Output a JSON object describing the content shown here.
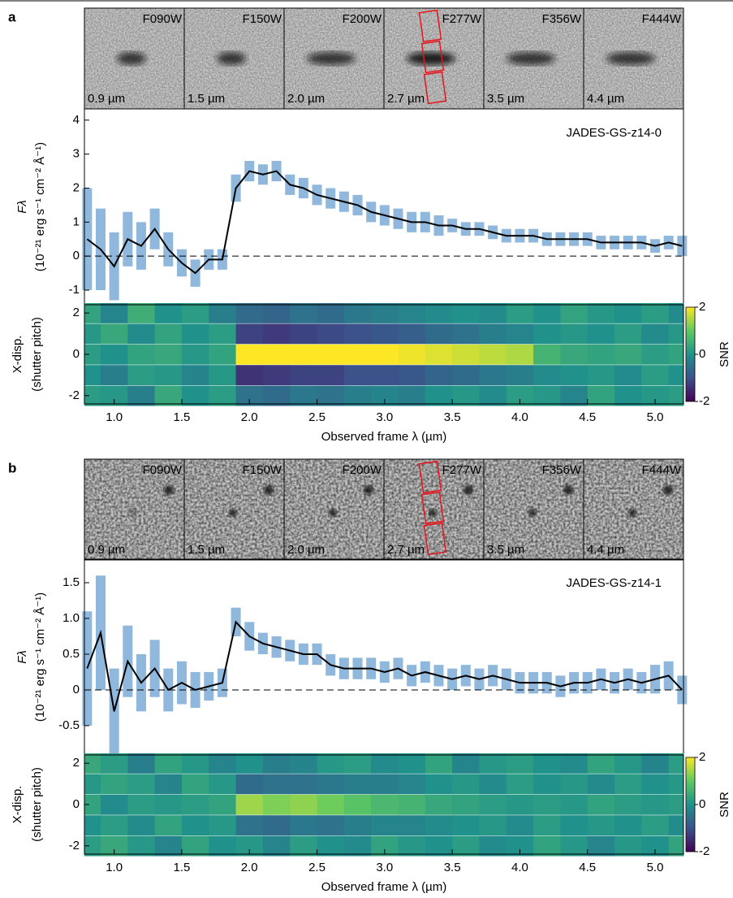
{
  "thumbnails": [
    {
      "label": "a",
      "filters": [
        "F090W",
        "F150W",
        "F200W",
        "F277W",
        "F356W",
        "F444W"
      ],
      "wavelengths": [
        "0.9 µm",
        "1.5 µm",
        "2.0 µm",
        "2.7 µm",
        "3.5 µm",
        "4.4 µm"
      ]
    },
    {
      "label": "b",
      "filters": [
        "F090W",
        "F150W",
        "F200W",
        "F277W",
        "F356W",
        "F444W"
      ],
      "wavelengths": [
        "0.9 µm",
        "1.5 µm",
        "2.0 µm",
        "2.7 µm",
        "3.5 µm",
        "4.4 µm"
      ]
    }
  ],
  "chart_data": [
    {
      "type": "line",
      "annotation": "JADES-GS-z14-0",
      "ylabel": "Fλ",
      "yunit": "(10⁻²¹ erg s⁻¹ cm⁻² Å⁻¹)",
      "x": [
        0.8,
        0.9,
        1.0,
        1.1,
        1.2,
        1.3,
        1.4,
        1.5,
        1.6,
        1.7,
        1.8,
        1.9,
        2.0,
        2.1,
        2.2,
        2.3,
        2.4,
        2.5,
        2.6,
        2.7,
        2.8,
        2.9,
        3.0,
        3.1,
        3.2,
        3.3,
        3.4,
        3.5,
        3.6,
        3.7,
        3.8,
        3.9,
        4.0,
        4.1,
        4.2,
        4.3,
        4.4,
        4.5,
        4.6,
        4.7,
        4.8,
        4.9,
        5.0,
        5.1,
        5.2
      ],
      "values": [
        0.5,
        0.2,
        -0.3,
        0.5,
        0.3,
        0.8,
        0.2,
        -0.2,
        -0.5,
        -0.1,
        -0.1,
        2.0,
        2.5,
        2.4,
        2.5,
        2.1,
        2.0,
        1.8,
        1.7,
        1.6,
        1.5,
        1.3,
        1.2,
        1.1,
        1.0,
        1.0,
        0.9,
        0.9,
        0.8,
        0.8,
        0.7,
        0.6,
        0.6,
        0.6,
        0.5,
        0.5,
        0.5,
        0.5,
        0.4,
        0.4,
        0.4,
        0.4,
        0.3,
        0.4,
        0.3
      ],
      "errors": [
        1.5,
        1.2,
        1.0,
        0.8,
        0.7,
        0.6,
        0.5,
        0.4,
        0.4,
        0.3,
        0.3,
        0.4,
        0.3,
        0.3,
        0.3,
        0.3,
        0.3,
        0.3,
        0.3,
        0.3,
        0.3,
        0.3,
        0.3,
        0.3,
        0.3,
        0.3,
        0.3,
        0.2,
        0.2,
        0.2,
        0.2,
        0.2,
        0.2,
        0.2,
        0.2,
        0.2,
        0.2,
        0.2,
        0.2,
        0.2,
        0.2,
        0.2,
        0.2,
        0.2,
        0.3
      ],
      "color": "#000000",
      "error_color": "#8fb8dc",
      "xlim": [
        0.78,
        5.21
      ],
      "ylim": [
        -1.43,
        4.33
      ],
      "yticks": [
        -1,
        0,
        1,
        2,
        3,
        4
      ]
    },
    {
      "type": "heatmap",
      "ylabel": [
        "X-disp.",
        "(shutter pitch)"
      ],
      "xlabel": "Observed frame λ (µm)",
      "colorbar_label": "SNR",
      "colormap": [
        "#440154",
        "#3b528b",
        "#21918c",
        "#5ec962",
        "#fde725"
      ],
      "x": [
        0.8,
        1.0,
        1.2,
        1.4,
        1.6,
        1.8,
        2.0,
        2.2,
        2.4,
        2.6,
        2.8,
        3.0,
        3.2,
        3.4,
        3.6,
        3.8,
        4.0,
        4.2,
        4.4,
        4.6,
        4.8,
        5.0,
        5.2
      ],
      "y": [
        2,
        1,
        0,
        -1,
        -2
      ],
      "z": [
        [
          0.3,
          -0.2,
          0.5,
          0,
          0.2,
          -0.3,
          -0.6,
          -0.7,
          -0.5,
          -0.6,
          -0.4,
          -0.3,
          -0.2,
          -0.1,
          0,
          -0.1,
          0.2,
          0,
          0.3,
          0.1,
          0,
          0.2,
          -0.1
        ],
        [
          0.1,
          0.4,
          -0.1,
          0.3,
          0,
          0.2,
          -1.2,
          -1.3,
          -1.2,
          -1.1,
          -1.0,
          -0.9,
          -0.8,
          -0.6,
          -0.5,
          -0.3,
          -0.2,
          0,
          0.1,
          0,
          0.2,
          -0.1,
          0.1
        ],
        [
          0.2,
          0,
          0.3,
          0.4,
          0.1,
          0.3,
          2,
          2,
          2,
          2,
          2,
          2,
          1.9,
          1.8,
          1.7,
          1.6,
          1.5,
          0.6,
          0.4,
          0.3,
          0.4,
          0.2,
          0.3
        ],
        [
          0,
          -0.3,
          0.2,
          0.1,
          -0.2,
          0.1,
          -1.4,
          -1.3,
          -1.2,
          -1.2,
          -1.0,
          -1.0,
          -0.9,
          -0.7,
          -0.6,
          -0.4,
          -0.3,
          -0.1,
          0,
          0.1,
          -0.1,
          0.2,
          0
        ],
        [
          0.2,
          0.1,
          -0.3,
          0.4,
          0,
          0.2,
          -0.5,
          -0.6,
          -0.4,
          -0.5,
          -0.3,
          -0.2,
          -0.3,
          0,
          0.1,
          -0.1,
          0.2,
          0.1,
          -0.2,
          0.3,
          0,
          0.1,
          0.2
        ]
      ],
      "xlim": [
        0.78,
        5.21
      ],
      "ylim": [
        -2.4,
        2.4
      ],
      "zlim": [
        -2,
        2
      ],
      "yticks": [
        -2,
        0,
        2
      ],
      "zticks": [
        -2,
        0,
        2
      ],
      "xticks": [
        {
          "value": 1,
          "label": "1.0"
        },
        1.5,
        {
          "value": 2,
          "label": "2.0"
        },
        2.5,
        {
          "value": 3,
          "label": "3.0"
        },
        3.5,
        {
          "value": 4,
          "label": "4.0"
        },
        4.5,
        {
          "value": 5,
          "label": "5.0"
        }
      ]
    },
    {
      "type": "line",
      "annotation": "JADES-GS-z14-1",
      "ylabel": "Fλ",
      "yunit": "(10⁻²¹ erg s⁻¹ cm⁻² Å⁻¹)",
      "x": [
        0.8,
        0.9,
        1.0,
        1.1,
        1.2,
        1.3,
        1.4,
        1.5,
        1.6,
        1.7,
        1.8,
        1.9,
        2.0,
        2.1,
        2.2,
        2.3,
        2.4,
        2.5,
        2.6,
        2.7,
        2.8,
        2.9,
        3.0,
        3.1,
        3.2,
        3.3,
        3.4,
        3.5,
        3.6,
        3.7,
        3.8,
        3.9,
        4.0,
        4.1,
        4.2,
        4.3,
        4.4,
        4.5,
        4.6,
        4.7,
        4.8,
        4.9,
        5.0,
        5.1,
        5.2
      ],
      "values": [
        0.3,
        0.8,
        -0.3,
        0.4,
        0.1,
        0.3,
        0.0,
        0.1,
        0.0,
        0.05,
        0.1,
        0.95,
        0.75,
        0.65,
        0.6,
        0.55,
        0.5,
        0.5,
        0.35,
        0.3,
        0.3,
        0.3,
        0.25,
        0.3,
        0.2,
        0.25,
        0.2,
        0.15,
        0.2,
        0.15,
        0.2,
        0.15,
        0.1,
        0.1,
        0.1,
        0.05,
        0.1,
        0.1,
        0.15,
        0.1,
        0.15,
        0.1,
        0.15,
        0.2,
        0.0
      ],
      "errors": [
        0.8,
        0.8,
        0.6,
        0.5,
        0.4,
        0.4,
        0.3,
        0.3,
        0.25,
        0.2,
        0.2,
        0.2,
        0.2,
        0.15,
        0.15,
        0.15,
        0.15,
        0.15,
        0.15,
        0.15,
        0.15,
        0.15,
        0.15,
        0.15,
        0.15,
        0.15,
        0.15,
        0.15,
        0.15,
        0.15,
        0.15,
        0.15,
        0.15,
        0.15,
        0.15,
        0.15,
        0.15,
        0.15,
        0.15,
        0.15,
        0.15,
        0.15,
        0.2,
        0.2,
        0.2
      ],
      "color": "#000000",
      "error_color": "#8fb8dc",
      "xlim": [
        0.78,
        5.21
      ],
      "ylim": [
        -0.91,
        1.83
      ],
      "yticks": [
        -0.5,
        0,
        0.5,
        {
          "value": 1,
          "label": "1.0"
        },
        1.5
      ]
    },
    {
      "type": "heatmap",
      "ylabel": [
        "X-disp.",
        "(shutter pitch)"
      ],
      "xlabel": "Observed frame λ (µm)",
      "colorbar_label": "SNR",
      "colormap": [
        "#440154",
        "#3b528b",
        "#21918c",
        "#5ec962",
        "#fde725"
      ],
      "x": [
        0.8,
        1.0,
        1.2,
        1.4,
        1.6,
        1.8,
        2.0,
        2.2,
        2.4,
        2.6,
        2.8,
        3.0,
        3.2,
        3.4,
        3.6,
        3.8,
        4.0,
        4.2,
        4.4,
        4.6,
        4.8,
        5.0,
        5.2
      ],
      "y": [
        2,
        1,
        0,
        -1,
        -2
      ],
      "z": [
        [
          0.4,
          0.2,
          -0.3,
          0.3,
          0.1,
          -0.2,
          0,
          -0.3,
          -0.2,
          0.1,
          0.2,
          -0.1,
          0,
          0.3,
          -0.2,
          0.1,
          0.2,
          0,
          -0.1,
          0.3,
          0.1,
          -0.2,
          0.2
        ],
        [
          0.1,
          0.3,
          0.2,
          -0.2,
          0.3,
          0.1,
          -0.6,
          -0.5,
          -0.5,
          -0.4,
          -0.3,
          -0.3,
          -0.2,
          0,
          0.1,
          -0.1,
          0.2,
          0,
          0.1,
          -0.1,
          0.2,
          0,
          0.1
        ],
        [
          0.3,
          -0.1,
          0.2,
          0.1,
          0.2,
          0.3,
          1.4,
          1.2,
          1.3,
          1.1,
          0.9,
          0.7,
          0.6,
          0.4,
          0.3,
          0.2,
          0.1,
          0.2,
          0.1,
          0.3,
          0.2,
          0.1,
          0.2
        ],
        [
          0,
          0.2,
          -0.1,
          0.3,
          0,
          0.1,
          -0.5,
          -0.6,
          -0.4,
          -0.5,
          -0.3,
          -0.2,
          -0.2,
          -0.1,
          0,
          0.1,
          -0.1,
          0.2,
          0,
          0.1,
          0,
          0.2,
          -0.1
        ],
        [
          0.2,
          0.4,
          0.1,
          -0.2,
          0.3,
          0,
          0.1,
          -0.2,
          0.2,
          0,
          -0.1,
          0.3,
          0.1,
          0,
          0.2,
          -0.1,
          0,
          0.3,
          0.1,
          -0.2,
          0.1,
          0,
          0.3
        ]
      ],
      "xlim": [
        0.78,
        5.21
      ],
      "ylim": [
        -2.4,
        2.4
      ],
      "zlim": [
        -2,
        2
      ],
      "yticks": [
        -2,
        0,
        2
      ],
      "zticks": [
        -2,
        0,
        2
      ],
      "xticks": [
        {
          "value": 1,
          "label": "1.0"
        },
        1.5,
        {
          "value": 2,
          "label": "2.0"
        },
        2.5,
        {
          "value": 3,
          "label": "3.0"
        },
        3.5,
        {
          "value": 4,
          "label": "4.0"
        },
        4.5,
        {
          "value": 5,
          "label": "5.0"
        }
      ]
    }
  ]
}
